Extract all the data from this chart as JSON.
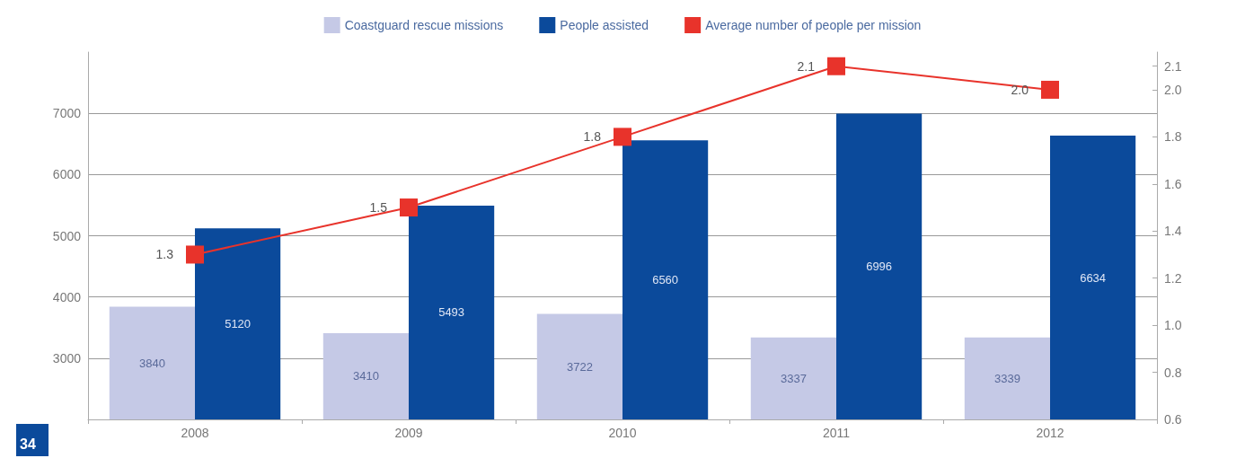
{
  "chart_data": {
    "type": "bar",
    "categories": [
      "2008",
      "2009",
      "2010",
      "2011",
      "2012"
    ],
    "series": [
      {
        "name": "Coastguard rescue missions",
        "color": "#c5c9e6",
        "values": [
          3840,
          3410,
          3722,
          3337,
          3339
        ]
      },
      {
        "name": "People assisted",
        "color": "#0b4a9b",
        "values": [
          5120,
          5493,
          6560,
          6996,
          6634
        ]
      },
      {
        "name": "Average number of people per mission",
        "type": "line",
        "axis": "y2",
        "color": "#e8332b",
        "marker": "square",
        "values": [
          1.3,
          1.5,
          1.8,
          2.1,
          2.0
        ],
        "value_labels": [
          "1.3",
          "1.5",
          "1.8",
          "2.1",
          "2.0"
        ]
      }
    ],
    "ylim": [
      2000,
      8000
    ],
    "yticks": [
      3000,
      4000,
      5000,
      6000,
      7000
    ],
    "y2lim": [
      0.6,
      2.16
    ],
    "y2ticks": [
      0.6,
      0.8,
      {
        "value": 1,
        "label": "1.0"
      },
      1.2,
      1.4,
      1.6,
      1.8,
      {
        "value": 2,
        "label": "2.0"
      },
      2.1
    ],
    "data_labels": true,
    "grid": "y",
    "legend": "top",
    "annotations": [
      "34"
    ]
  }
}
